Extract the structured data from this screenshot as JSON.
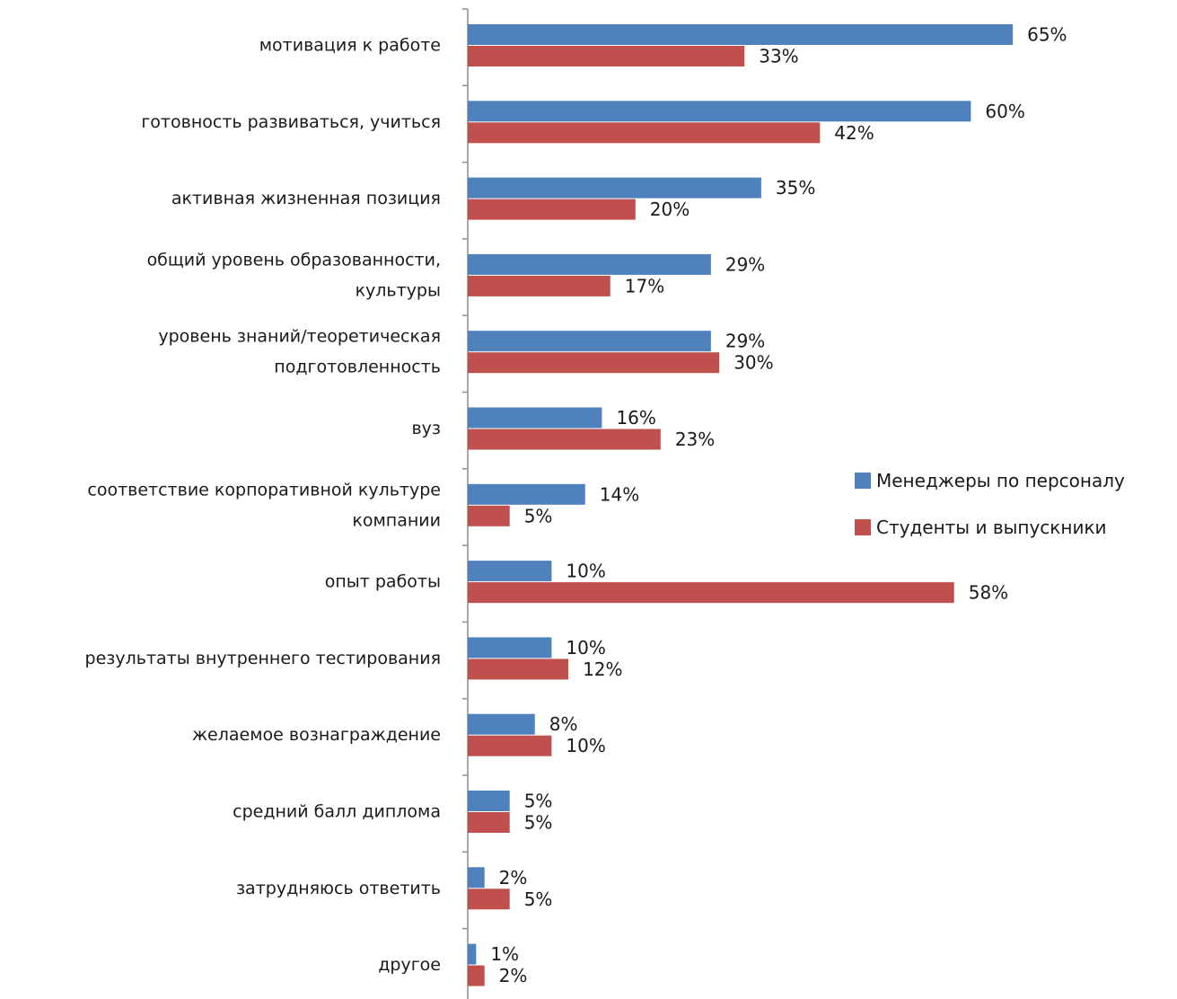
{
  "chart_data": {
    "type": "bar",
    "orientation": "horizontal",
    "title": "",
    "xlabel": "",
    "ylabel": "",
    "xlim": [
      0,
      70
    ],
    "grid": false,
    "legend_position": "right",
    "value_suffix": "%",
    "categories": [
      [
        "мотивация к работе"
      ],
      [
        "готовность развиваться,  учиться"
      ],
      [
        "активная жизненная позиция"
      ],
      [
        "общий уровень образованности,",
        "культуры"
      ],
      [
        "уровень знаний/теоретическая",
        "подготовленность"
      ],
      [
        "вуз"
      ],
      [
        "соответствие корпоративной культуре",
        "компании"
      ],
      [
        "опыт работы"
      ],
      [
        "результаты внутреннего тестирования"
      ],
      [
        "желаемое вознаграждение"
      ],
      [
        "средний балл диплома"
      ],
      [
        "затрудняюсь ответить"
      ],
      [
        "другое"
      ]
    ],
    "series": [
      {
        "name": "Менеджеры по персоналу",
        "color": "#4f81bd",
        "values": [
          65,
          60,
          35,
          29,
          29,
          16,
          14,
          10,
          10,
          8,
          5,
          2,
          1
        ]
      },
      {
        "name": "Студенты и выпускники",
        "color": "#c0504d",
        "values": [
          33,
          42,
          20,
          17,
          30,
          23,
          5,
          58,
          12,
          10,
          5,
          5,
          2
        ]
      }
    ]
  }
}
